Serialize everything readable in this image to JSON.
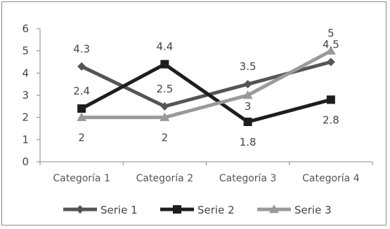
{
  "chart_data": {
    "type": "line",
    "categories": [
      "Categoría 1",
      "Categoría 2",
      "Categoría 3",
      "Categoría 4"
    ],
    "series": [
      {
        "name": "Serie 1",
        "values": [
          4.3,
          2.5,
          3.5,
          4.5
        ],
        "color": "#555555",
        "marker": "diamond"
      },
      {
        "name": "Serie 2",
        "values": [
          2.4,
          4.4,
          1.8,
          2.8
        ],
        "color": "#1e1e1e",
        "marker": "square"
      },
      {
        "name": "Serie 3",
        "values": [
          2,
          2,
          3,
          5
        ],
        "color": "#9a9a9a",
        "marker": "triangle"
      }
    ],
    "ylim": [
      0,
      6
    ],
    "yticks": [
      "0",
      "1",
      "2",
      "3",
      "4",
      "5",
      "6"
    ],
    "grid": false,
    "legend_position": "bottom",
    "data_labels": [
      {
        "series": 0,
        "point": 0,
        "text": "4.3",
        "placement": "above"
      },
      {
        "series": 0,
        "point": 1,
        "text": "2.5",
        "placement": "above"
      },
      {
        "series": 0,
        "point": 2,
        "text": "3.5",
        "placement": "above"
      },
      {
        "series": 0,
        "point": 3,
        "text": "4.5",
        "placement": "above"
      },
      {
        "series": 1,
        "point": 0,
        "text": "2.4",
        "placement": "above"
      },
      {
        "series": 1,
        "point": 1,
        "text": "4.4",
        "placement": "above"
      },
      {
        "series": 1,
        "point": 2,
        "text": "1.8",
        "placement": "below"
      },
      {
        "series": 1,
        "point": 3,
        "text": "2.8",
        "placement": "below"
      },
      {
        "series": 2,
        "point": 0,
        "text": "2",
        "placement": "below"
      },
      {
        "series": 2,
        "point": 1,
        "text": "2",
        "placement": "below"
      },
      {
        "series": 2,
        "point": 2,
        "text": "3",
        "placement": "on"
      },
      {
        "series": 2,
        "point": 3,
        "text": "5",
        "placement": "above"
      }
    ]
  }
}
